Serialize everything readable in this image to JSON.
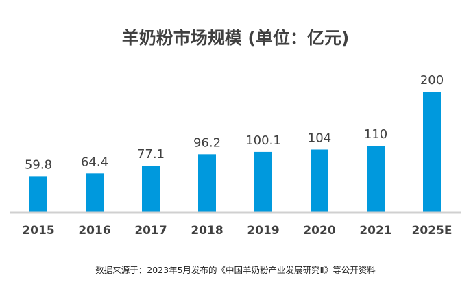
{
  "chart_data": {
    "type": "bar",
    "title": "羊奶粉市场规模 (单位：亿元)",
    "categories": [
      "2015",
      "2016",
      "2017",
      "2018",
      "2019",
      "2020",
      "2021",
      "2025E"
    ],
    "values": [
      59.8,
      64.4,
      77.1,
      96.2,
      100.1,
      104,
      110,
      200
    ],
    "value_labels": [
      "59.8",
      "64.4",
      "77.1",
      "96.2",
      "100.1",
      "104",
      "110",
      "200"
    ],
    "ylim": [
      0,
      200
    ],
    "grid": false,
    "legend": "none",
    "colors": {
      "bar": "#0099DD",
      "axis": "#D0D0D0",
      "text": "#404040"
    }
  },
  "source_note": "数据来源于：2023年5月发布的《中国羊奶粉产业发展研究Ⅱ》等公开资料"
}
